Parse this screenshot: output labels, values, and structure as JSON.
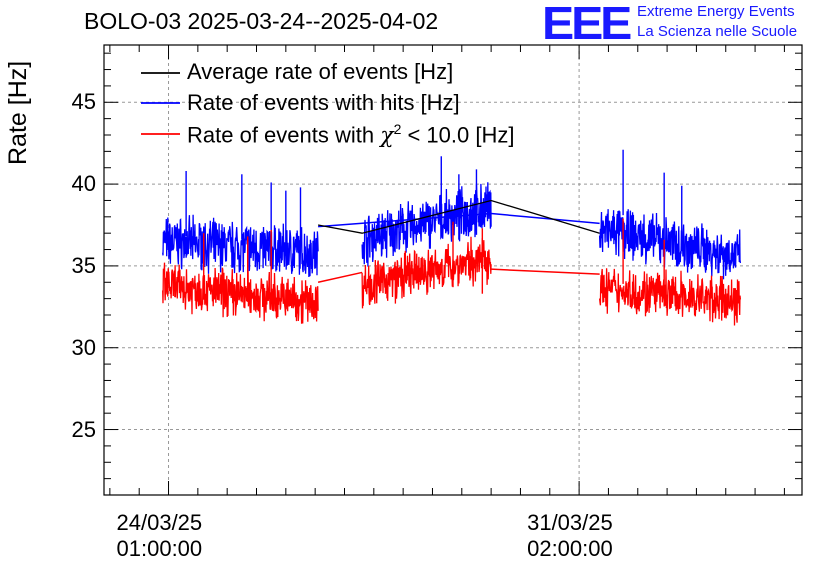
{
  "chart_data": {
    "type": "line",
    "title": "BOLO-03 2025-03-24--2025-04-02",
    "ylabel": "Rate [Hz]",
    "xlabel": "",
    "ylim": [
      21,
      48.5
    ],
    "yticks": [
      "25",
      "30",
      "35",
      "40",
      "45"
    ],
    "xticks": [
      {
        "date": "24/03/25",
        "time": "01:00:00",
        "day": 0
      },
      {
        "date": "31/03/25",
        "time": "02:00:00",
        "day": 7
      }
    ],
    "xlim_days": [
      -1.1,
      10.8
    ],
    "grid": true,
    "legend_position": "top-left",
    "series": [
      {
        "name": "Average rate of events [Hz]",
        "color": "#000000",
        "x": [
          2.55,
          3.3,
          5.5,
          7.35
        ],
        "y": [
          37.5,
          37.0,
          39.0,
          37.0
        ]
      },
      {
        "name": "Rate of events with hits [Hz]",
        "color": "#0000ff",
        "segments": [
          {
            "start": -0.1,
            "end": 2.55,
            "base_start": 36.5,
            "base_end": 35.8,
            "noise": 2.4
          },
          {
            "start": 3.3,
            "end": 5.5,
            "base_start": 36.6,
            "base_end": 38.6,
            "noise": 2.4
          },
          {
            "start": 7.35,
            "end": 9.75,
            "base_start": 37.2,
            "base_end": 35.6,
            "noise": 2.4
          }
        ],
        "spikes": [
          [
            0.3,
            40.8
          ],
          [
            1.25,
            40.6
          ],
          [
            1.75,
            40.1
          ],
          [
            2.0,
            39.6
          ],
          [
            2.25,
            39.8
          ],
          [
            4.65,
            41.7
          ],
          [
            4.95,
            40.6
          ],
          [
            5.25,
            40.9
          ],
          [
            7.75,
            42.1
          ],
          [
            8.45,
            40.7
          ],
          [
            8.75,
            39.9
          ]
        ]
      },
      {
        "name": "Rate of events with χ² < 10.0 [Hz]",
        "color": "#ff0000",
        "segments": [
          {
            "start": -0.1,
            "end": 2.55,
            "base_start": 33.8,
            "base_end": 32.8,
            "noise": 2.2
          },
          {
            "start": 3.3,
            "end": 5.5,
            "base_start": 33.8,
            "base_end": 35.5,
            "noise": 2.2
          },
          {
            "start": 7.35,
            "end": 9.75,
            "base_start": 33.6,
            "base_end": 32.8,
            "noise": 2.2
          }
        ],
        "links": [
          [
            2.55,
            34.0,
            3.3,
            34.6
          ],
          [
            5.5,
            34.8,
            7.35,
            34.5
          ]
        ],
        "spikes": [
          [
            0.6,
            37.0
          ],
          [
            1.75,
            37.2
          ],
          [
            1.35,
            36.8
          ],
          [
            4.85,
            37.7
          ],
          [
            5.35,
            37.3
          ],
          [
            7.75,
            37.9
          ],
          [
            8.45,
            36.6
          ]
        ]
      }
    ]
  },
  "header": {
    "title": "BOLO-03 2025-03-24--2025-04-02",
    "logo": "EEE",
    "logo_line1": "Extreme Energy Events",
    "logo_line2": "La Scienza nelle Scuole"
  },
  "legend": {
    "avg": "Average rate of events [Hz]",
    "hits": "Rate of events with hits [Hz]",
    "chi_pre": "Rate of events with ",
    "chi_symbol": "χ",
    "chi_sup": "2",
    "chi_post": " < 10.0 [Hz]"
  }
}
